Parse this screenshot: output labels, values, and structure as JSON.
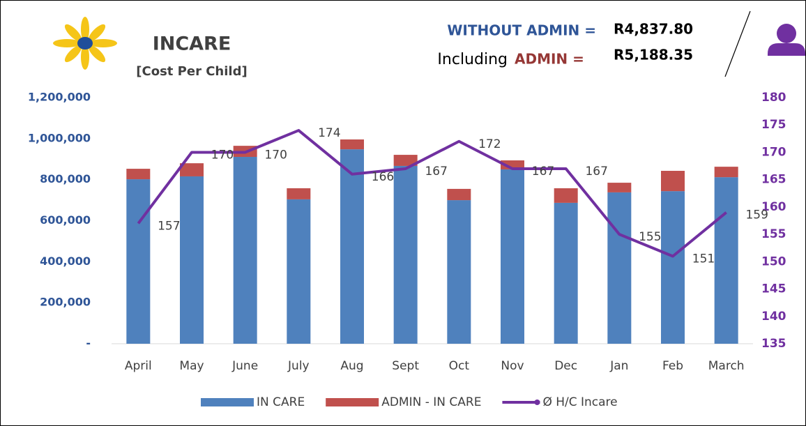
{
  "header": {
    "title": "INCARE",
    "subtitle": "[Cost Per Child]",
    "without_label": "WITHOUT ADMIN =",
    "without_value": "R4,837.80",
    "including_label": "Including",
    "including_admin": "ADMIN =",
    "including_value": "R5,188.35"
  },
  "chart_data": {
    "type": "bar",
    "categories": [
      "April",
      "May",
      "June",
      "July",
      "Aug",
      "Sept",
      "Oct",
      "Nov",
      "Dec",
      "Jan",
      "Feb",
      "March"
    ],
    "series": [
      {
        "name": "IN CARE",
        "color": "#4f81bd",
        "values": [
          802000,
          816000,
          911000,
          704000,
          948000,
          867000,
          700000,
          850000,
          687000,
          738000,
          744000,
          812000
        ]
      },
      {
        "name": "ADMIN - IN CARE",
        "color": "#c0504d",
        "values": [
          51000,
          64000,
          54000,
          54000,
          48000,
          54000,
          55000,
          44000,
          71000,
          47000,
          99000,
          51000
        ]
      },
      {
        "name": "Ø H/C Incare",
        "color": "#7030a0",
        "axis": "y2",
        "type": "line",
        "values": [
          157,
          170,
          170,
          174,
          166,
          167,
          172,
          167,
          167,
          155,
          151,
          159
        ]
      }
    ],
    "stacked": true,
    "ylim": [
      0,
      1200000
    ],
    "yticks": [
      {
        "value": 0,
        "label": "-"
      },
      {
        "value": 200000,
        "label": "200,000"
      },
      {
        "value": 400000,
        "label": "400,000"
      },
      {
        "value": 600000,
        "label": "600,000"
      },
      {
        "value": 800000,
        "label": "800,000"
      },
      {
        "value": 1000000,
        "label": "1,000,000"
      },
      {
        "value": 1200000,
        "label": "1,200,000"
      }
    ],
    "y2lim": [
      135,
      180
    ],
    "y2ticks": [
      135,
      140,
      145,
      150,
      155,
      160,
      165,
      170,
      175,
      180
    ],
    "legend": "bottom"
  }
}
